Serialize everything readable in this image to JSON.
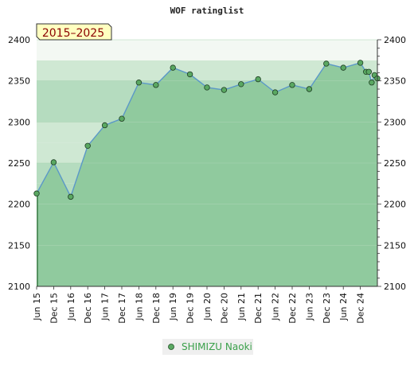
{
  "chart_data": {
    "type": "area",
    "title": "WOF ratinglist",
    "range_badge": "2015–2025",
    "xlabel": "",
    "ylabel": "",
    "ylim": [
      2100,
      2400
    ],
    "y_ticks": [
      2100,
      2150,
      2200,
      2250,
      2300,
      2350,
      2400
    ],
    "x_tick_labels": [
      "Jun 15",
      "Dec 15",
      "Jun 16",
      "Dec 16",
      "Jun 17",
      "Dec 17",
      "Jun 18",
      "Dec 18",
      "Jun 19",
      "Dec 19",
      "Jun 20",
      "Dec 20",
      "Jun 21",
      "Dec 21",
      "Jun 22",
      "Dec 22",
      "Jun 23",
      "Dec 23",
      "Jun 24",
      "Dec 24"
    ],
    "legend_position": "bottom-center",
    "series": [
      {
        "name": "SHIMIZU Naoki",
        "color": "#5aa862",
        "points": [
          {
            "x": "Jun 15",
            "y": 2213
          },
          {
            "x": "Dec 15",
            "y": 2251
          },
          {
            "x": "Jun 16",
            "y": 2209
          },
          {
            "x": "Dec 16",
            "y": 2271
          },
          {
            "x": "Jun 17",
            "y": 2296
          },
          {
            "x": "Dec 17",
            "y": 2304
          },
          {
            "x": "Jun 18",
            "y": 2348
          },
          {
            "x": "Dec 18",
            "y": 2345
          },
          {
            "x": "Jun 19",
            "y": 2366
          },
          {
            "x": "Dec 19",
            "y": 2358
          },
          {
            "x": "Jun 20",
            "y": 2342
          },
          {
            "x": "Dec 20",
            "y": 2339
          },
          {
            "x": "Jun 21",
            "y": 2346
          },
          {
            "x": "Dec 21",
            "y": 2352
          },
          {
            "x": "Jun 22",
            "y": 2336
          },
          {
            "x": "Dec 22",
            "y": 2345
          },
          {
            "x": "Jun 23",
            "y": 2340
          },
          {
            "x": "Dec 23",
            "y": 2371
          },
          {
            "x": "Jun 24",
            "y": 2366
          },
          {
            "x": "Dec 24",
            "y": 2372
          },
          {
            "x": "Feb 25",
            "y": 2361
          },
          {
            "x": "Mar 25",
            "y": 2361
          },
          {
            "x": "Apr 25",
            "y": 2348
          },
          {
            "x": "May 25",
            "y": 2357
          },
          {
            "x": "Jun 25",
            "y": 2353
          }
        ]
      }
    ]
  },
  "colors": {
    "band_light": "#b5dcbf",
    "band_lighter": "#cfe8d3",
    "band_lightest": "#f3f8f3",
    "area_fill": "#90ca9e",
    "area_fill_dark": "#7dc08f",
    "line": "#5b98c8",
    "marker": "#5aa862",
    "badge_bg": "#ffffc0"
  }
}
